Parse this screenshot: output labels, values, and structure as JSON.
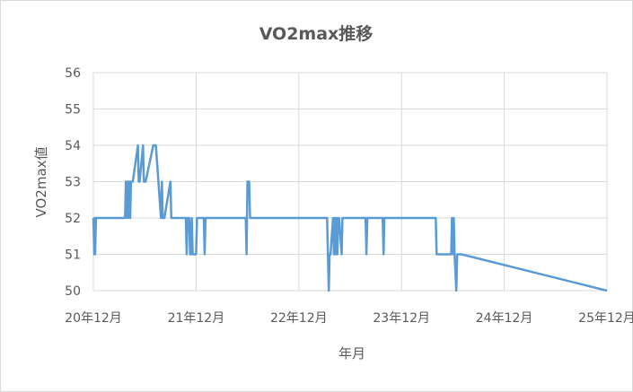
{
  "chart_data": {
    "type": "line",
    "title": "VO2max推移",
    "xlabel": "年月",
    "ylabel": "VO2max値",
    "ylim": [
      50,
      56
    ],
    "yticks": [
      "50",
      "51",
      "52",
      "53",
      "54",
      "55",
      "56"
    ],
    "xlim": [
      0,
      60
    ],
    "xtick_labels": [
      "20年12月",
      "21年12月",
      "22年12月",
      "23年12月",
      "24年12月",
      "25年12月"
    ],
    "grid": true,
    "line_color": "#5b9bd5",
    "series": [
      {
        "x": [
          0,
          0.1,
          0.15,
          0.2,
          0.3,
          3.7,
          3.8,
          3.9,
          4.0,
          4.1,
          4.2,
          4.3,
          4.4,
          4.6,
          5.2,
          5.3,
          5.4,
          5.8,
          5.9,
          6.0,
          6.1,
          7.0,
          7.2,
          7.3,
          7.9,
          8.0,
          8.1,
          8.2,
          8.3,
          9.0,
          9.1,
          9.2,
          10.8,
          10.9,
          11.0,
          11.2,
          11.3,
          11.4,
          11.5,
          11.6,
          11.7,
          11.8,
          12.0,
          12.1,
          12.2,
          12.9,
          13.0,
          13.1,
          17.8,
          17.9,
          18.0,
          18.2,
          18.3,
          27.3,
          27.4,
          27.5,
          27.6,
          27.7,
          28.0,
          28.1,
          28.2,
          28.3,
          28.4,
          28.5,
          28.6,
          28.7,
          29.0,
          29.1,
          29.2,
          31.8,
          31.9,
          32.0,
          33.8,
          33.9,
          34.0,
          40.0,
          40.1,
          41.8,
          41.9,
          42.0,
          42.1,
          42.2,
          42.4,
          42.5,
          42.6,
          42.8,
          42.9,
          43.0,
          60.0
        ],
        "y": [
          52,
          51,
          52,
          51,
          52,
          52,
          53,
          52,
          53,
          52,
          53,
          52,
          53,
          53,
          54,
          53,
          53,
          54,
          53,
          53,
          53,
          54,
          54,
          54,
          52,
          53,
          52,
          52,
          52,
          53,
          52,
          52,
          52,
          51,
          52,
          52,
          51,
          51,
          52,
          51,
          51,
          51,
          51,
          52,
          52,
          52,
          51,
          52,
          52,
          51,
          53,
          53,
          52,
          52,
          51,
          50,
          51,
          51,
          52,
          51,
          52,
          51,
          52,
          51,
          52,
          52,
          51,
          52,
          52,
          52,
          51,
          52,
          52,
          51,
          52,
          52,
          51,
          51,
          52,
          51,
          52,
          51,
          50,
          51,
          51,
          51,
          51,
          51,
          50
        ]
      }
    ]
  }
}
